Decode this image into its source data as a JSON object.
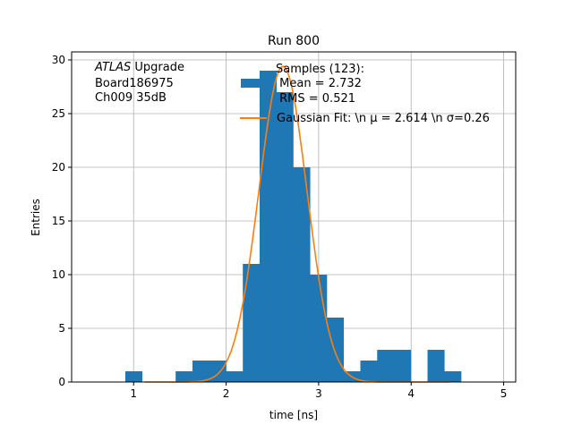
{
  "chart_data": {
    "type": "bar",
    "title": "Run 800",
    "xlabel": "time [ns]",
    "ylabel": "Entries",
    "xlim": [
      0.33,
      5.13
    ],
    "ylim": [
      0,
      30.75
    ],
    "grid": true,
    "xticks": [
      1,
      2,
      3,
      4,
      5
    ],
    "yticks": [
      0,
      5,
      10,
      15,
      20,
      25,
      30
    ],
    "bin_edges_start": 0.91,
    "bin_width": 0.1815,
    "values": [
      1,
      0,
      0,
      1,
      2,
      2,
      1,
      11,
      29,
      27,
      20,
      10,
      6,
      1,
      2,
      3,
      3,
      0,
      3,
      1
    ],
    "bar_color": "#1f77b4",
    "fit": {
      "mu": 2.614,
      "sigma": 0.26,
      "amplitude": 29.4,
      "x_range": [
        1.12,
        4.41
      ],
      "color": "#ff7f0e"
    },
    "annotation": [
      "ATLAS Upgrade",
      "Board186975",
      "Ch009 35dB"
    ],
    "annotation_italic": "ATLAS",
    "legend": {
      "placement": "top-right",
      "entries": [
        {
          "lines": [
            "Samples (123):",
            " Mean = 2.732",
            " RMS = 0.521"
          ],
          "kind": "patch"
        },
        {
          "lines": [
            "Gaussian Fit: \\n μ = 2.614 \\n σ=0.26"
          ],
          "kind": "line"
        }
      ]
    }
  }
}
